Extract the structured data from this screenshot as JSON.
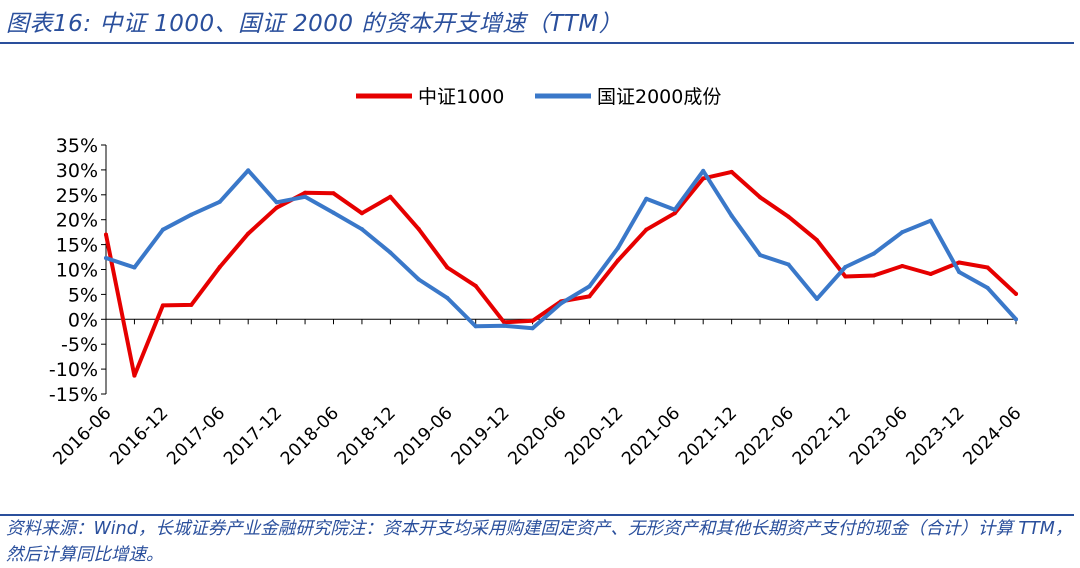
{
  "title": "图表16:  中证 1000、国证 2000 的资本开支增速（TTM）",
  "source": "资料来源：Wind，长城证券产业金融研究院注：资本开支均采用购建固定资产、无形资产和其他长期资产支付的现金（合计）计算 TTM，然后计算同比增速。",
  "chart_data": {
    "type": "line",
    "x": [
      "2016-06",
      "2016-09",
      "2016-12",
      "2017-03",
      "2017-06",
      "2017-09",
      "2017-12",
      "2018-03",
      "2018-06",
      "2018-09",
      "2018-12",
      "2019-03",
      "2019-06",
      "2019-09",
      "2019-12",
      "2020-03",
      "2020-06",
      "2020-09",
      "2020-12",
      "2021-03",
      "2021-06",
      "2021-09",
      "2021-12",
      "2022-03",
      "2022-06",
      "2022-09",
      "2022-12",
      "2023-03",
      "2023-06",
      "2023-09",
      "2023-12",
      "2024-03",
      "2024-06"
    ],
    "x_tick_labels": [
      "2016-06",
      "2016-12",
      "2017-06",
      "2017-12",
      "2018-06",
      "2018-12",
      "2019-06",
      "2019-12",
      "2020-06",
      "2020-12",
      "2021-06",
      "2021-12",
      "2022-06",
      "2022-12",
      "2023-06",
      "2023-12",
      "2024-06"
    ],
    "y_tick_labels": [
      "35%",
      "30%",
      "25%",
      "20%",
      "15%",
      "10%",
      "5%",
      "0%",
      "-5%",
      "-10%",
      "-15%"
    ],
    "ylim": [
      -15,
      35
    ],
    "y_unit": "%",
    "legend_position": "top-center",
    "grid": false,
    "series": [
      {
        "name": "中证1000",
        "color": "#e60000",
        "values": [
          17.0,
          -11.3,
          2.8,
          2.9,
          10.5,
          17.2,
          22.4,
          25.4,
          25.3,
          21.3,
          24.6,
          18.1,
          10.4,
          6.7,
          -0.6,
          -0.3,
          3.6,
          4.6,
          11.8,
          18.0,
          21.3,
          28.3,
          29.6,
          24.5,
          20.6,
          15.9,
          8.6,
          8.8,
          10.7,
          9.1,
          11.4,
          10.4,
          5.1
        ]
      },
      {
        "name": "国证2000成份",
        "color": "#3a78c9",
        "values": [
          12.3,
          10.4,
          18.0,
          21.0,
          23.6,
          29.9,
          23.5,
          24.6,
          21.4,
          18.1,
          13.4,
          8.0,
          4.3,
          -1.4,
          -1.3,
          -1.8,
          3.2,
          6.6,
          14.3,
          24.2,
          22.0,
          29.8,
          20.8,
          12.9,
          11.0,
          4.1,
          10.5,
          13.2,
          17.5,
          19.8,
          9.5,
          6.3,
          0.0
        ]
      }
    ]
  }
}
